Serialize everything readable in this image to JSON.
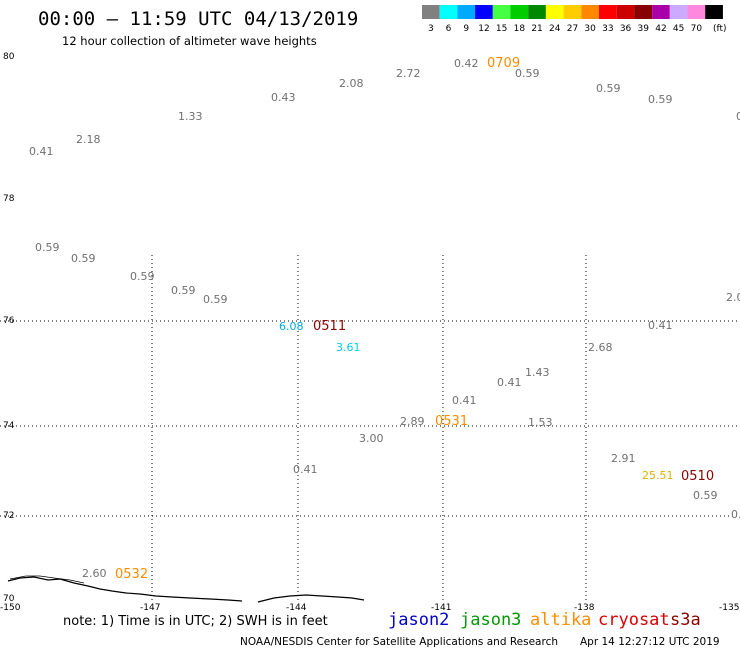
{
  "header": {
    "title": "00:00 – 11:59 UTC 04/13/2019",
    "subtitle": "12 hour collection of altimeter wave heights"
  },
  "scale": {
    "unit_label": "(ft)",
    "bins": [
      {
        "label": "3",
        "color": "#808080"
      },
      {
        "label": "6",
        "color": "#00ffff"
      },
      {
        "label": "9",
        "color": "#00aaff"
      },
      {
        "label": "12",
        "color": "#0000ff"
      },
      {
        "label": "15",
        "color": "#44ff44"
      },
      {
        "label": "18",
        "color": "#00cc00"
      },
      {
        "label": "21",
        "color": "#008800"
      },
      {
        "label": "24",
        "color": "#ffff00"
      },
      {
        "label": "27",
        "color": "#ffcc00"
      },
      {
        "label": "30",
        "color": "#ff8800"
      },
      {
        "label": "33",
        "color": "#ff0000"
      },
      {
        "label": "36",
        "color": "#cc0000"
      },
      {
        "label": "39",
        "color": "#880000"
      },
      {
        "label": "42",
        "color": "#aa00aa"
      },
      {
        "label": "45",
        "color": "#ccaaff"
      },
      {
        "label": "70",
        "color": "#ff88dd"
      },
      {
        "label": "",
        "color": "#000000"
      }
    ]
  },
  "map": {
    "lat_labels": [
      "80",
      "78",
      "76",
      "74",
      "72",
      "70"
    ],
    "lon_labels": [
      "-150",
      "-147",
      "-144",
      "-141",
      "-138",
      "-135"
    ],
    "wave_heights": [
      {
        "text": "0.41",
        "color": "#707070"
      },
      {
        "text": "2.18",
        "color": "#707070"
      },
      {
        "text": "1.33",
        "color": "#707070"
      },
      {
        "text": "0.43",
        "color": "#707070"
      },
      {
        "text": "2.08",
        "color": "#707070"
      },
      {
        "text": "2.72",
        "color": "#707070"
      },
      {
        "text": "0.42",
        "color": "#707070"
      },
      {
        "text": "0.59",
        "color": "#707070"
      },
      {
        "text": "0.59",
        "color": "#707070"
      },
      {
        "text": "0.59",
        "color": "#707070"
      },
      {
        "text": "0",
        "color": "#707070"
      },
      {
        "text": "0.59",
        "color": "#707070"
      },
      {
        "text": "0.59",
        "color": "#707070"
      },
      {
        "text": "0.59",
        "color": "#707070"
      },
      {
        "text": "0.59",
        "color": "#707070"
      },
      {
        "text": "0.59",
        "color": "#707070"
      },
      {
        "text": "2.0",
        "color": "#707070"
      },
      {
        "text": "6.08",
        "color": "#00aadd"
      },
      {
        "text": "3.61",
        "color": "#00ccee"
      },
      {
        "text": "0.41",
        "color": "#707070"
      },
      {
        "text": "2.68",
        "color": "#707070"
      },
      {
        "text": "1.43",
        "color": "#707070"
      },
      {
        "text": "0.41",
        "color": "#707070"
      },
      {
        "text": "0.41",
        "color": "#707070"
      },
      {
        "text": "2.89",
        "color": "#707070"
      },
      {
        "text": "1.53",
        "color": "#707070"
      },
      {
        "text": "3.00",
        "color": "#707070"
      },
      {
        "text": "2.91",
        "color": "#707070"
      },
      {
        "text": "25.51",
        "color": "#e0b000"
      },
      {
        "text": "0.41",
        "color": "#707070"
      },
      {
        "text": "0.59",
        "color": "#707070"
      },
      {
        "text": "0.",
        "color": "#707070"
      },
      {
        "text": "2.60",
        "color": "#707070"
      }
    ],
    "pass_times": [
      {
        "text": "0709",
        "color": "#ff8c00"
      },
      {
        "text": "0511",
        "color": "#8b0000"
      },
      {
        "text": "0531",
        "color": "#ff8c00"
      },
      {
        "text": "0510",
        "color": "#8b0000"
      },
      {
        "text": "0532",
        "color": "#ff8c00"
      }
    ]
  },
  "footer": {
    "note": "note: 1) Time is in UTC; 2) SWH is in feet",
    "satellites": [
      {
        "name": "jason2",
        "color": "#0000cc"
      },
      {
        "name": "jason3",
        "color": "#009900"
      },
      {
        "name": "altika",
        "color": "#ff8c00"
      },
      {
        "name": "cryosat",
        "color": "#dd0000"
      },
      {
        "name": "s3a",
        "color": "#8b0000"
      }
    ],
    "credit_org": "NOAA/NESDIS Center for Satellite Applications and Research",
    "credit_time": "Apr 14 12:27:12 UTC 2019"
  }
}
